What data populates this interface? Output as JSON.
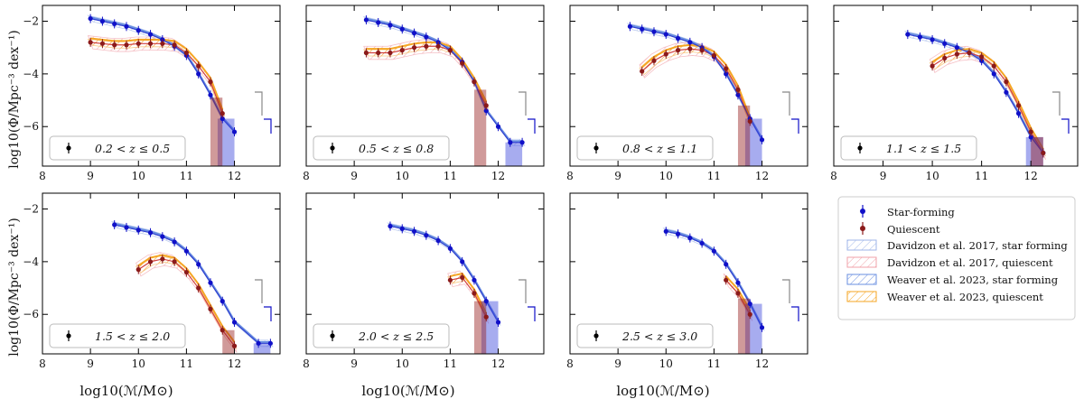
{
  "figure": {
    "ylabel": "log10(Φ/Mpc⁻³ dex⁻¹)",
    "xlabel": "log10(ℳ/M⊙)",
    "x_ticks": [
      8,
      9,
      10,
      11,
      12
    ],
    "y_ticks": [
      -2,
      -4,
      -6
    ],
    "xlim": [
      8,
      12.95
    ],
    "ylim": [
      -7.5,
      -1.4
    ]
  },
  "legend": {
    "items": [
      {
        "label": "Star-forming",
        "kind": "marker",
        "color": "#1010c8"
      },
      {
        "label": "Quiescent",
        "kind": "marker",
        "color": "#8b1a1a"
      },
      {
        "label": "Davidzon et al. 2017, star forming",
        "kind": "hatch",
        "color": "#9fb6e8"
      },
      {
        "label": "Davidzon et al. 2017, quiescent",
        "kind": "hatch",
        "color": "#f0a0a8"
      },
      {
        "label": "Weaver et al. 2023, star forming",
        "kind": "hatch",
        "color": "#6a8fe0"
      },
      {
        "label": "Weaver et al. 2023, quiescent",
        "kind": "hatch",
        "color": "#f5a623"
      }
    ]
  },
  "chart_data": [
    {
      "type": "scatter",
      "title": "0.2 < z ≤ 0.5",
      "z_label": "0.2 < z ≤ 0.5",
      "xlim": [
        8,
        12.95
      ],
      "ylim": [
        -7.5,
        -1.4
      ],
      "series": [
        {
          "name": "Star-forming",
          "x": [
            9.0,
            9.25,
            9.5,
            9.75,
            10.0,
            10.25,
            10.5,
            10.75,
            11.0,
            11.25,
            11.5,
            11.75,
            12.0
          ],
          "y": [
            -1.9,
            -2.0,
            -2.1,
            -2.2,
            -2.35,
            -2.5,
            -2.7,
            -2.95,
            -3.3,
            -4.0,
            -4.8,
            -5.7,
            -6.2
          ]
        },
        {
          "name": "Quiescent",
          "x": [
            9.0,
            9.25,
            9.5,
            9.75,
            10.0,
            10.25,
            10.5,
            10.75,
            11.0,
            11.25,
            11.5,
            11.75
          ],
          "y": [
            -2.8,
            -2.85,
            -2.9,
            -2.9,
            -2.85,
            -2.85,
            -2.85,
            -2.9,
            -3.2,
            -3.7,
            -4.3,
            -5.5
          ]
        }
      ]
    },
    {
      "type": "scatter",
      "title": "0.5 < z ≤ 0.8",
      "z_label": "0.5 < z ≤ 0.8",
      "xlim": [
        8,
        12.95
      ],
      "ylim": [
        -7.5,
        -1.4
      ],
      "series": [
        {
          "name": "Star-forming",
          "x": [
            9.25,
            9.5,
            9.75,
            10.0,
            10.25,
            10.5,
            10.75,
            11.0,
            11.25,
            11.5,
            11.75,
            12.0,
            12.25,
            12.5
          ],
          "y": [
            -1.95,
            -2.05,
            -2.15,
            -2.3,
            -2.45,
            -2.6,
            -2.8,
            -3.1,
            -3.55,
            -4.3,
            -5.4,
            -6.0,
            -6.6,
            -6.6
          ]
        },
        {
          "name": "Quiescent",
          "x": [
            9.25,
            9.5,
            9.75,
            10.0,
            10.25,
            10.5,
            10.75,
            11.0,
            11.25,
            11.5,
            11.75
          ],
          "y": [
            -3.2,
            -3.2,
            -3.2,
            -3.1,
            -3.0,
            -2.95,
            -2.95,
            -3.1,
            -3.6,
            -4.3,
            -5.2
          ]
        }
      ]
    },
    {
      "type": "scatter",
      "title": "0.8 < z ≤ 1.1",
      "z_label": "0.8 < z ≤ 1.1",
      "xlim": [
        8,
        12.95
      ],
      "ylim": [
        -7.5,
        -1.4
      ],
      "series": [
        {
          "name": "Star-forming",
          "x": [
            9.25,
            9.5,
            9.75,
            10.0,
            10.25,
            10.5,
            10.75,
            11.0,
            11.25,
            11.5,
            11.75,
            12.0
          ],
          "y": [
            -2.2,
            -2.3,
            -2.4,
            -2.5,
            -2.65,
            -2.8,
            -3.0,
            -3.35,
            -4.0,
            -4.8,
            -5.7,
            -6.5
          ]
        },
        {
          "name": "Quiescent",
          "x": [
            9.5,
            9.75,
            10.0,
            10.25,
            10.5,
            10.75,
            11.0,
            11.25,
            11.5,
            11.75
          ],
          "y": [
            -3.9,
            -3.5,
            -3.25,
            -3.1,
            -3.05,
            -3.1,
            -3.3,
            -3.8,
            -4.6,
            -5.8
          ]
        }
      ]
    },
    {
      "type": "scatter",
      "title": "1.1 < z ≤ 1.5",
      "z_label": "1.1 < z ≤ 1.5",
      "xlim": [
        8,
        12.95
      ],
      "ylim": [
        -7.5,
        -1.4
      ],
      "series": [
        {
          "name": "Star-forming",
          "x": [
            9.5,
            9.75,
            10.0,
            10.25,
            10.5,
            10.75,
            11.0,
            11.25,
            11.5,
            11.75,
            12.0,
            12.25
          ],
          "y": [
            -2.5,
            -2.6,
            -2.7,
            -2.85,
            -3.0,
            -3.2,
            -3.5,
            -4.0,
            -4.7,
            -5.5,
            -6.4,
            -7.0
          ]
        },
        {
          "name": "Quiescent",
          "x": [
            10.0,
            10.25,
            10.5,
            10.75,
            11.0,
            11.25,
            11.5,
            11.75,
            12.0,
            12.25
          ],
          "y": [
            -3.7,
            -3.4,
            -3.25,
            -3.2,
            -3.35,
            -3.7,
            -4.3,
            -5.2,
            -6.2,
            -7.0
          ]
        }
      ]
    },
    {
      "type": "scatter",
      "title": "1.5 < z ≤ 2.0",
      "z_label": "1.5 < z ≤ 2.0",
      "xlim": [
        8,
        12.95
      ],
      "ylim": [
        -7.5,
        -1.4
      ],
      "series": [
        {
          "name": "Star-forming",
          "x": [
            9.5,
            9.75,
            10.0,
            10.25,
            10.5,
            10.75,
            11.0,
            11.25,
            11.5,
            11.75,
            12.0,
            12.5,
            12.75
          ],
          "y": [
            -2.6,
            -2.7,
            -2.8,
            -2.9,
            -3.05,
            -3.25,
            -3.6,
            -4.1,
            -4.8,
            -5.5,
            -6.3,
            -7.1,
            -7.1
          ]
        },
        {
          "name": "Quiescent",
          "x": [
            10.0,
            10.25,
            10.5,
            10.75,
            11.0,
            11.25,
            11.5,
            11.75,
            12.0
          ],
          "y": [
            -4.3,
            -4.0,
            -3.9,
            -4.0,
            -4.4,
            -5.0,
            -5.8,
            -6.6,
            -7.2
          ]
        }
      ]
    },
    {
      "type": "scatter",
      "title": "2.0 < z ≤ 2.5",
      "z_label": "2.0 < z ≤ 2.5",
      "xlim": [
        8,
        12.95
      ],
      "ylim": [
        -7.5,
        -1.4
      ],
      "series": [
        {
          "name": "Star-forming",
          "x": [
            9.75,
            10.0,
            10.25,
            10.5,
            10.75,
            11.0,
            11.25,
            11.5,
            11.75,
            12.0
          ],
          "y": [
            -2.65,
            -2.75,
            -2.85,
            -3.0,
            -3.2,
            -3.5,
            -4.0,
            -4.7,
            -5.5,
            -6.3
          ]
        },
        {
          "name": "Quiescent",
          "x": [
            11.0,
            11.25,
            11.5,
            11.75
          ],
          "y": [
            -4.7,
            -4.6,
            -5.2,
            -6.1
          ]
        }
      ]
    },
    {
      "type": "scatter",
      "title": "2.5 < z ≤ 3.0",
      "z_label": "2.5 < z ≤ 3.0",
      "xlim": [
        8,
        12.95
      ],
      "ylim": [
        -7.5,
        -1.4
      ],
      "series": [
        {
          "name": "Star-forming",
          "x": [
            10.0,
            10.25,
            10.5,
            10.75,
            11.0,
            11.25,
            11.5,
            11.75,
            12.0
          ],
          "y": [
            -2.85,
            -2.95,
            -3.1,
            -3.3,
            -3.6,
            -4.1,
            -4.8,
            -5.6,
            -6.5
          ]
        },
        {
          "name": "Quiescent",
          "x": [
            11.25,
            11.5,
            11.75
          ],
          "y": [
            -4.7,
            -5.2,
            -6.0
          ]
        }
      ]
    }
  ]
}
